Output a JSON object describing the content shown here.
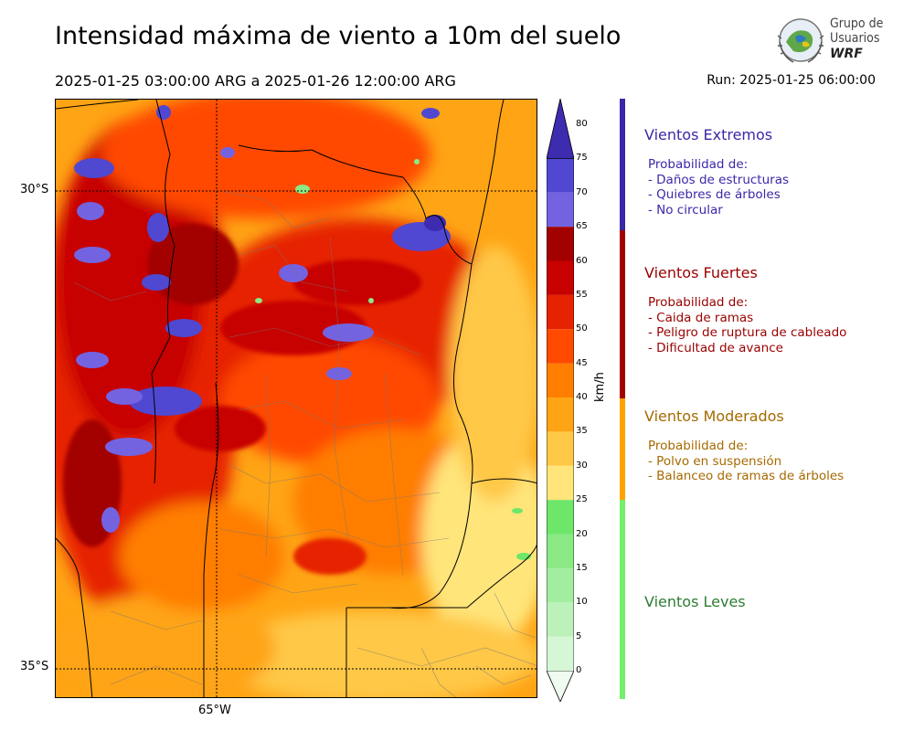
{
  "header": {
    "title": "Intensidad máxima de viento a 10m del suelo",
    "period": "2025-01-25 03:00:00 ARG  a  2025-01-26 12:00:00 ARG",
    "run": "Run: 2025-01-25 06:00:00"
  },
  "logo": {
    "line1": "Grupo de",
    "line2": "Usuarios",
    "line3": "WRF"
  },
  "map": {
    "lat_labels": [
      "30°S",
      "35°S"
    ],
    "lon_labels": [
      "65°W"
    ]
  },
  "colorbar": {
    "unit": "km/h",
    "ticks": [
      "0",
      "5",
      "10",
      "15",
      "20",
      "25",
      "30",
      "35",
      "40",
      "45",
      "50",
      "55",
      "60",
      "65",
      "70",
      "75",
      "80"
    ],
    "colors": [
      "#effcef",
      "#d6f7d5",
      "#bcf2ba",
      "#a2eea0",
      "#8be986",
      "#6ee66a",
      "#ffe57a",
      "#ffc846",
      "#ffa414",
      "#ff7e00",
      "#ff4a00",
      "#e62200",
      "#c70000",
      "#a30000",
      "#7363e0",
      "#5048d0",
      "#3d2bb0"
    ]
  },
  "categories": [
    {
      "title": "Vientos Extremos",
      "color": "#3a28a8",
      "text_color": "#3a28a8",
      "lines": [
        "Probabilidad de:",
        "- Daños de estructuras",
        "- Quiebres de árboles",
        "- No circular"
      ]
    },
    {
      "title": "Vientos Fuertes",
      "color": "#a30000",
      "text_color": "#9a0000",
      "lines": [
        "Probabilidad de:",
        "- Caida de ramas",
        "- Peligro de ruptura de cableado",
        "- Dificultad de avance"
      ]
    },
    {
      "title": "Vientos Moderados",
      "color": "#ffa200",
      "text_color": "#a66a00",
      "lines": [
        "Probabilidad de:",
        "- Polvo en suspensión",
        "- Balanceo de ramas de árboles"
      ]
    },
    {
      "title": "Vientos Leves",
      "color": "#74ee6c",
      "text_color": "#2e7d32",
      "lines": []
    }
  ]
}
